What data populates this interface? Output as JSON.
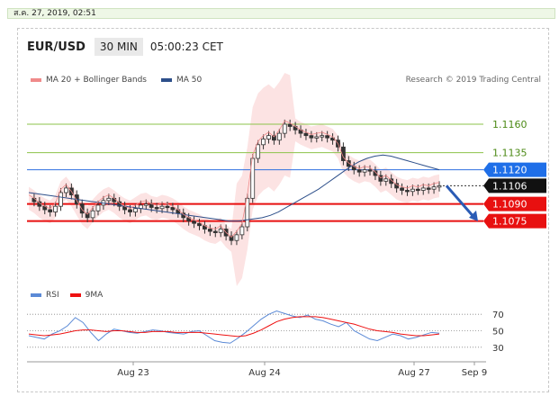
{
  "date_label": "ส.ค. 27, 2019, 02:51",
  "header": {
    "pair": "EUR/USD",
    "timeframe": "30 MIN",
    "time": "05:00:23 CET"
  },
  "legend": {
    "ma20": "MA 20 + Bollinger Bands",
    "ma20_color": "#f08a8a",
    "ma50": "MA 50",
    "ma50_color": "#2d4f8a"
  },
  "credit": "Research © 2019 Trading Central",
  "rsi_legend": {
    "rsi": "RSI",
    "rsi_color": "#5b8ad6",
    "ma9": "9MA",
    "ma9_color": "#e11"
  },
  "chart_data": {
    "type": "candlestick",
    "x_ticks": [
      "Aug 23",
      "Aug 24",
      "Aug 27",
      "Sep 9"
    ],
    "ylim": [
      1.104,
      1.119
    ],
    "levels": [
      {
        "label": "1.1160",
        "value": 1.116,
        "style": "resistance"
      },
      {
        "label": "1.1135",
        "value": 1.1135,
        "style": "resistance"
      },
      {
        "label": "1.1120",
        "value": 1.112,
        "style": "pivot"
      },
      {
        "label": "1.1106",
        "value": 1.1106,
        "style": "last"
      },
      {
        "label": "1.1090",
        "value": 1.109,
        "style": "support"
      },
      {
        "label": "1.1075",
        "value": 1.1075,
        "style": "support"
      }
    ],
    "price": [
      1.1095,
      1.1092,
      1.1088,
      1.1085,
      1.1083,
      1.1088,
      1.11,
      1.1104,
      1.1098,
      1.109,
      1.1082,
      1.1078,
      1.1084,
      1.1089,
      1.1093,
      1.1095,
      1.1092,
      1.1088,
      1.1085,
      1.1083,
      1.1086,
      1.1089,
      1.109,
      1.1087,
      1.1086,
      1.1088,
      1.1087,
      1.1085,
      1.1082,
      1.1078,
      1.1075,
      1.1073,
      1.1071,
      1.1068,
      1.1066,
      1.1065,
      1.1068,
      1.1062,
      1.1058,
      1.1063,
      1.107,
      1.1095,
      1.113,
      1.1142,
      1.1147,
      1.115,
      1.1146,
      1.1152,
      1.116,
      1.1158,
      1.1155,
      1.1152,
      1.115,
      1.1148,
      1.1149,
      1.115,
      1.1148,
      1.1146,
      1.114,
      1.1128,
      1.1123,
      1.112,
      1.1118,
      1.112,
      1.1119,
      1.1115,
      1.111,
      1.1112,
      1.1108,
      1.1104,
      1.1102,
      1.1101,
      1.1103,
      1.1102,
      1.1104,
      1.1103,
      1.1105,
      1.1106
    ],
    "ma50": [
      1.11,
      1.1099,
      1.1098,
      1.1097,
      1.1096,
      1.1095,
      1.1094,
      1.1093,
      1.1092,
      1.1091,
      1.109,
      1.1089,
      1.1088,
      1.1087,
      1.1086,
      1.1085,
      1.1084,
      1.1083,
      1.1082,
      1.1081,
      1.108,
      1.1079,
      1.1078,
      1.1077,
      1.1076,
      1.1075,
      1.1075,
      1.1076,
      1.1077,
      1.1078,
      1.108,
      1.1083,
      1.1087,
      1.1091,
      1.1095,
      1.1099,
      1.1103,
      1.1108,
      1.1113,
      1.1118,
      1.1123,
      1.1127,
      1.113,
      1.1132,
      1.1133,
      1.1132,
      1.113,
      1.1128,
      1.1126,
      1.1124,
      1.1122,
      1.112
    ],
    "rsi_levels": [
      70,
      50,
      30
    ],
    "rsi": [
      44,
      42,
      40,
      46,
      50,
      56,
      66,
      60,
      48,
      38,
      46,
      52,
      50,
      48,
      47,
      49,
      51,
      50,
      48,
      47,
      46,
      49,
      50,
      44,
      38,
      36,
      35,
      41,
      48,
      56,
      64,
      70,
      74,
      71,
      68,
      66,
      69,
      64,
      62,
      58,
      55,
      60,
      50,
      45,
      40,
      38,
      42,
      46,
      44,
      40,
      42,
      45,
      48,
      47
    ],
    "rsi_ma9": [
      46,
      45,
      44,
      45,
      46,
      48,
      50,
      51,
      51,
      50,
      49,
      50,
      50,
      49,
      48,
      48,
      49,
      49,
      49,
      48,
      48,
      48,
      48,
      47,
      46,
      45,
      44,
      43,
      44,
      47,
      51,
      56,
      61,
      64,
      66,
      67,
      67,
      67,
      66,
      64,
      62,
      60,
      58,
      55,
      52,
      50,
      49,
      48,
      46,
      45,
      44,
      44,
      45,
      46
    ]
  }
}
